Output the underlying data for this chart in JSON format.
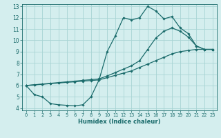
{
  "xlabel": "Humidex (Indice chaleur)",
  "bg_color": "#d4eeee",
  "grid_color": "#a8d4d4",
  "line_color": "#1a6b6b",
  "xlim": [
    -0.5,
    23.5
  ],
  "ylim": [
    3.8,
    13.2
  ],
  "xticks": [
    0,
    1,
    2,
    3,
    4,
    5,
    6,
    7,
    8,
    9,
    10,
    11,
    12,
    13,
    14,
    15,
    16,
    17,
    18,
    19,
    20,
    21,
    22,
    23
  ],
  "yticks": [
    4,
    5,
    6,
    7,
    8,
    9,
    10,
    11,
    12,
    13
  ],
  "line1_x": [
    0,
    1,
    2,
    3,
    4,
    5,
    6,
    7,
    8,
    9,
    10,
    11,
    12,
    13,
    14,
    15,
    16,
    17,
    18,
    19,
    20,
    21,
    22,
    23
  ],
  "line1_y": [
    6.0,
    5.2,
    5.0,
    4.4,
    4.3,
    4.25,
    4.2,
    4.3,
    5.0,
    6.5,
    9.0,
    10.4,
    12.0,
    11.8,
    12.0,
    13.0,
    12.6,
    11.9,
    12.1,
    11.1,
    10.6,
    9.5,
    9.2,
    9.2
  ],
  "line2_x": [
    0,
    1,
    2,
    3,
    4,
    5,
    6,
    7,
    8,
    9,
    10,
    11,
    12,
    13,
    14,
    15,
    16,
    17,
    18,
    19,
    20,
    21,
    22,
    23
  ],
  "line2_y": [
    6.0,
    6.07,
    6.13,
    6.2,
    6.26,
    6.33,
    6.39,
    6.46,
    6.52,
    6.59,
    6.85,
    7.15,
    7.45,
    7.75,
    8.2,
    9.2,
    10.2,
    10.8,
    11.1,
    10.8,
    10.3,
    9.5,
    9.2,
    9.2
  ],
  "line3_x": [
    0,
    1,
    2,
    3,
    4,
    5,
    6,
    7,
    8,
    9,
    10,
    11,
    12,
    13,
    14,
    15,
    16,
    17,
    18,
    19,
    20,
    21,
    22,
    23
  ],
  "line3_y": [
    6.0,
    6.06,
    6.11,
    6.17,
    6.22,
    6.28,
    6.33,
    6.39,
    6.44,
    6.5,
    6.7,
    6.9,
    7.1,
    7.3,
    7.6,
    7.9,
    8.2,
    8.5,
    8.8,
    9.0,
    9.1,
    9.2,
    9.2,
    9.2
  ]
}
